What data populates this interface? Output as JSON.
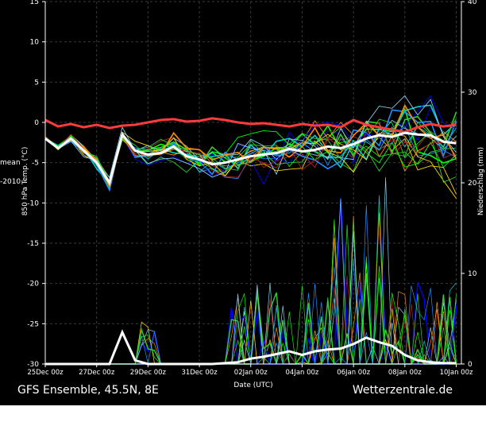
{
  "footer": {
    "title": "GFS Ensemble, 45.5N, 8E",
    "brand": "Wetterzentrale.de"
  },
  "chart_data": {
    "type": "line",
    "xlabel": "Date (UTC)",
    "ylabel_left": "850 hPa Temp. (°C)",
    "ylabel_right": "Niederschlag (mm)",
    "left_legend_fragments": [
      "mean",
      "-2010"
    ],
    "xlim_days": [
      0,
      16.2
    ],
    "x_tick_labels": [
      "25Dec 00z",
      "27Dec 00z",
      "29Dec 00z",
      "31Dec 00z",
      "02Jan 00z",
      "04Jan 00z",
      "06Jan 00z",
      "08Jan 00z",
      "10Jan 00z"
    ],
    "x_tick_days": [
      0,
      2,
      4,
      6,
      8,
      10,
      12,
      14,
      16
    ],
    "ylim_left": [
      -30,
      15
    ],
    "y_ticks_left": [
      -30,
      -25,
      -20,
      -15,
      -10,
      -5,
      0,
      5,
      10,
      15
    ],
    "ylim_right": [
      0,
      40
    ],
    "y_ticks_right": [
      0,
      10,
      20,
      30,
      40
    ],
    "grid": true,
    "colors": {
      "background": "#000000",
      "climatology": "#ff3b3b",
      "mean": "#ffffff",
      "members": [
        "#00ff00",
        "#22dd22",
        "#1e90ff",
        "#0000ff",
        "#00ced1",
        "#ffd700",
        "#ff8c00",
        "#b22222",
        "#32cd32",
        "#87ceeb"
      ]
    },
    "series": [
      {
        "role": "climatology",
        "x": [
          0,
          0.5,
          1,
          1.5,
          2,
          2.5,
          3,
          3.5,
          4,
          4.5,
          5,
          5.5,
          6,
          6.5,
          7,
          7.5,
          8,
          8.5,
          9,
          9.5,
          10,
          10.5,
          11,
          11.5,
          12,
          12.5,
          13,
          13.5,
          14,
          14.5,
          15,
          15.5,
          16
        ],
        "temp": [
          0.3,
          -0.5,
          -0.2,
          -0.6,
          -0.3,
          -0.7,
          -0.4,
          -0.3,
          0.0,
          0.3,
          0.4,
          0.1,
          0.2,
          0.5,
          0.3,
          0.0,
          -0.2,
          -0.1,
          -0.3,
          -0.5,
          -0.2,
          -0.4,
          -0.3,
          -0.6,
          0.3,
          -0.3,
          -0.6,
          -0.9,
          -1.2,
          -0.6,
          -0.2,
          -0.5,
          -0.3
        ]
      },
      {
        "role": "mean",
        "x": [
          0,
          0.5,
          1,
          1.5,
          2,
          2.5,
          3,
          3.5,
          4,
          4.5,
          5,
          5.5,
          6,
          6.5,
          7,
          7.5,
          8,
          8.5,
          9,
          9.5,
          10,
          10.5,
          11,
          11.5,
          12,
          12.5,
          13,
          13.5,
          14,
          14.5,
          15,
          15.5,
          16
        ],
        "temp": [
          -2.0,
          -3.2,
          -2.0,
          -3.5,
          -5.0,
          -7.5,
          -1.5,
          -3.5,
          -4.0,
          -3.8,
          -3.0,
          -4.2,
          -4.6,
          -5.2,
          -5.0,
          -4.6,
          -4.2,
          -4.0,
          -3.8,
          -3.3,
          -3.6,
          -3.4,
          -3.0,
          -3.2,
          -2.7,
          -2.0,
          -1.6,
          -1.8,
          -1.3,
          -1.5,
          -1.6,
          -2.4,
          -2.6
        ],
        "precip": [
          0,
          0,
          0,
          0,
          0,
          0,
          3.5,
          0.4,
          0,
          0,
          0,
          0,
          0,
          0,
          0.1,
          0.2,
          0.6,
          0.8,
          1.1,
          1.4,
          1.0,
          1.4,
          1.6,
          1.7,
          2.2,
          2.9,
          2.4,
          2.0,
          1.0,
          0.4,
          0.2,
          0.1,
          0.1
        ]
      }
    ],
    "members_note": "20 ensemble members, temperature and precipitation traces"
  }
}
